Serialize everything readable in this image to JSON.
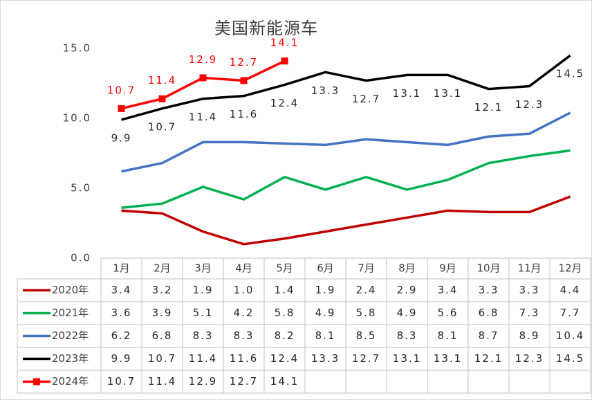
{
  "chart_data": {
    "type": "line",
    "title": "美国新能源车",
    "categories": [
      "1月",
      "2月",
      "3月",
      "4月",
      "5月",
      "6月",
      "7月",
      "8月",
      "9月",
      "10月",
      "11月",
      "12月"
    ],
    "series": [
      {
        "name": "2020年",
        "color": "#c00000",
        "values": [
          3.4,
          3.2,
          1.9,
          1.0,
          1.4,
          1.9,
          2.4,
          2.9,
          3.4,
          3.3,
          3.3,
          4.4
        ],
        "value_labels": [
          "3.4",
          "3.2",
          "1.9",
          "1.0",
          "1.4",
          "1.9",
          "2.4",
          "2.9",
          "3.4",
          "3.3",
          "3.3",
          "4.4"
        ]
      },
      {
        "name": "2021年",
        "color": "#00b050",
        "values": [
          3.6,
          3.9,
          5.1,
          4.2,
          5.8,
          4.9,
          5.8,
          4.9,
          5.6,
          6.8,
          7.3,
          7.7
        ],
        "value_labels": [
          "3.6",
          "3.9",
          "5.1",
          "4.2",
          "5.8",
          "4.9",
          "5.8",
          "4.9",
          "5.6",
          "6.8",
          "7.3",
          "7.7"
        ]
      },
      {
        "name": "2022年",
        "color": "#4472c4",
        "values": [
          6.2,
          6.8,
          8.3,
          8.3,
          8.2,
          8.1,
          8.5,
          8.3,
          8.1,
          8.7,
          8.9,
          10.4
        ],
        "value_labels": [
          "6.2",
          "6.8",
          "8.3",
          "8.3",
          "8.2",
          "8.1",
          "8.5",
          "8.3",
          "8.1",
          "8.7",
          "8.9",
          "10.4"
        ]
      },
      {
        "name": "2023年",
        "color": "#000000",
        "values": [
          9.9,
          10.7,
          11.4,
          11.6,
          12.4,
          13.3,
          12.7,
          13.1,
          13.1,
          12.1,
          12.3,
          14.5
        ],
        "value_labels": [
          "9.9",
          "10.7",
          "11.4",
          "11.6",
          "12.4",
          "13.3",
          "12.7",
          "13.1",
          "13.1",
          "12.1",
          "12.3",
          "14.5"
        ]
      },
      {
        "name": "2024年",
        "color": "#ff0000",
        "values": [
          10.7,
          11.4,
          12.9,
          12.7,
          14.1,
          null,
          null,
          null,
          null,
          null,
          null,
          null
        ],
        "value_labels": [
          "10.7",
          "11.4",
          "12.9",
          "12.7",
          "14.1",
          null,
          null,
          null,
          null,
          null,
          null,
          null
        ]
      }
    ],
    "ylim": [
      0,
      15
    ],
    "yticks": [
      {
        "value": 0,
        "label": "0.0"
      },
      {
        "value": 5,
        "label": "5.0"
      },
      {
        "value": 10,
        "label": "10.0"
      },
      {
        "value": 15,
        "label": "15.0"
      }
    ]
  }
}
